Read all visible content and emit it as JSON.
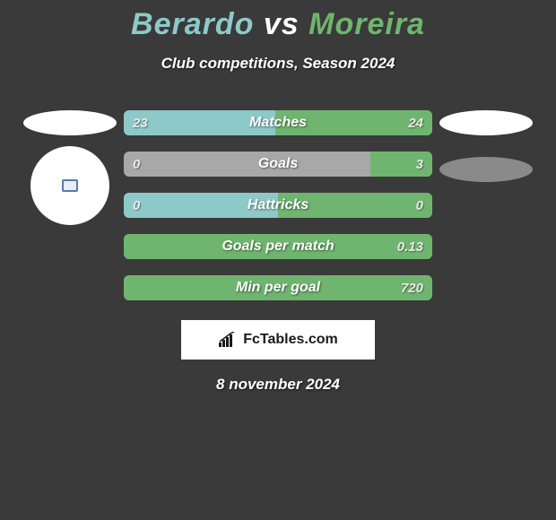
{
  "title": {
    "left": "Berardo",
    "mid": "vs",
    "right": "Moreira",
    "left_color": "#8ec9c9",
    "mid_color": "#ffffff",
    "right_color": "#6fb56f"
  },
  "subtitle": "Club competitions, Season 2024",
  "colors": {
    "background": "#3a3a3a",
    "left_series": "#8ec9c9",
    "right_series": "#6fb56f",
    "empty": "#a8a8a8",
    "bar_border": "#2a2a2a",
    "val_text": "#e9e9e9",
    "label_text": "#ffffff"
  },
  "bars": [
    {
      "label": "Matches",
      "left_value": "23",
      "right_value": "24",
      "left_pct": 49,
      "right_pct": 51,
      "left_fill": "#8ec9c9",
      "right_fill": "#6fb56f"
    },
    {
      "label": "Goals",
      "left_value": "0",
      "right_value": "3",
      "left_pct": 0,
      "right_pct": 20,
      "left_fill": "#a8a8a8",
      "right_fill": "#6fb56f",
      "base_fill": "#a8a8a8"
    },
    {
      "label": "Hattricks",
      "left_value": "0",
      "right_value": "0",
      "left_pct": 50,
      "right_pct": 50,
      "left_fill": "#8ec9c9",
      "right_fill": "#6fb56f"
    },
    {
      "label": "Goals per match",
      "left_value": "",
      "right_value": "0.13",
      "left_pct": 0,
      "right_pct": 100,
      "left_fill": "#a8a8a8",
      "right_fill": "#6fb56f"
    },
    {
      "label": "Min per goal",
      "left_value": "",
      "right_value": "720",
      "left_pct": 0,
      "right_pct": 100,
      "left_fill": "#a8a8a8",
      "right_fill": "#6fb56f"
    }
  ],
  "logo": "FcTables.com",
  "date": "8 november 2024"
}
